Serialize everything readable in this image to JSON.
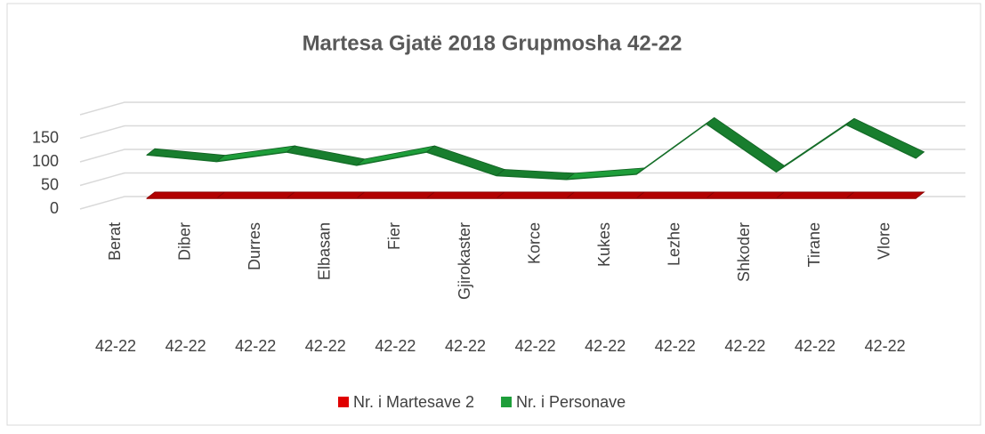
{
  "chart_data": {
    "type": "line3d",
    "title": "Martesa Gjatë 2018 Grupmosha 42-22",
    "categories": [
      "Berat",
      "Diber",
      "Durres",
      "Elbasan",
      "Fier",
      "Gjirokaster",
      "Korce",
      "Kukes",
      "Lezhe",
      "Shkoder",
      "Tirane",
      "Vlore"
    ],
    "groups": [
      "42-22",
      "42-22",
      "42-22",
      "42-22",
      "42-22",
      "42-22",
      "42-22",
      "42-22",
      "42-22",
      "42-22",
      "42-22",
      "42-22"
    ],
    "series": [
      {
        "name": "Nr. i Martesave 2",
        "color": "#e00000",
        "values": [
          2,
          2,
          2,
          2,
          2,
          2,
          2,
          2,
          2,
          2,
          2,
          2
        ]
      },
      {
        "name": "Nr. i Personave",
        "color": "#1e9e3a",
        "values": [
          94,
          80,
          100,
          72,
          100,
          50,
          42,
          53,
          160,
          58,
          158,
          87
        ]
      }
    ],
    "ylim": [
      0,
      200
    ],
    "yticks": [
      0,
      50,
      100,
      150
    ],
    "grid": true,
    "legend": "bottom"
  }
}
